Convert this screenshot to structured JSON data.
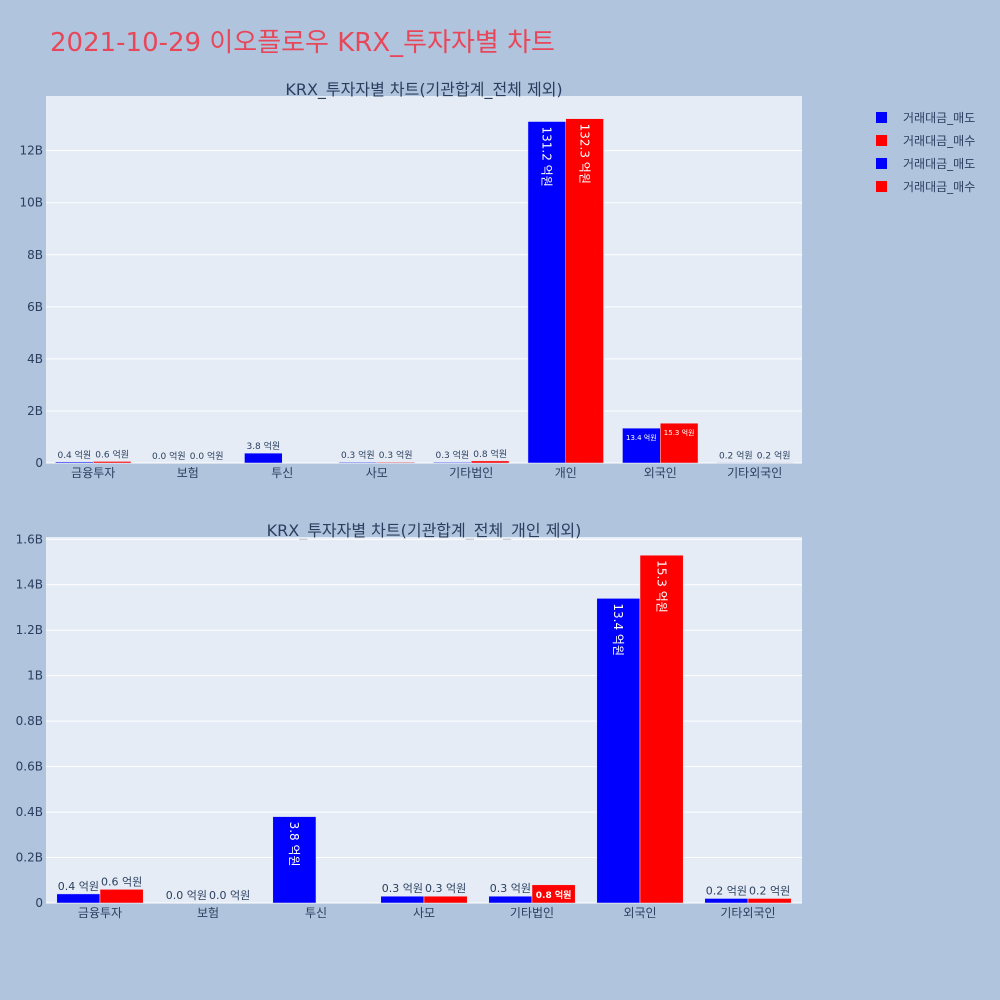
{
  "page_title": "2021-10-29 이오플로우 KRX_투자자별 차트",
  "colors": {
    "sell": "#0000ff",
    "buy": "#ff0000",
    "plot_bg": "#e5ecf6",
    "page_bg": "#b0c4de"
  },
  "legend": [
    {
      "label": "거래대금_매도",
      "color": "#0000ff"
    },
    {
      "label": "거래대금_매수",
      "color": "#ff0000"
    },
    {
      "label": "거래대금_매도",
      "color": "#0000ff"
    },
    {
      "label": "거래대금_매수",
      "color": "#ff0000"
    }
  ],
  "chart_data": [
    {
      "type": "bar",
      "title": "KRX_투자자별 차트(기관합계_전체 제외)",
      "categories": [
        "금융투자",
        "보험",
        "투신",
        "사모",
        "기타법인",
        "개인",
        "외국인",
        "기타외국인"
      ],
      "series": [
        {
          "name": "거래대금_매도",
          "values": [
            0.04,
            0.0,
            0.38,
            0.03,
            0.03,
            13.12,
            1.34,
            0.02
          ],
          "labels": [
            "0.4 억원",
            "0.0 억원",
            "3.8 억원",
            "0.3 억원",
            "0.3 억원",
            "131.2 억원",
            "13.4 억원",
            "0.2 억원"
          ]
        },
        {
          "name": "거래대금_매수",
          "values": [
            0.06,
            0.0,
            0.0,
            0.03,
            0.08,
            13.23,
            1.53,
            0.02
          ],
          "labels": [
            "0.6 억원",
            "0.0 억원",
            "",
            "0.3 억원",
            "0.8 억원",
            "132.3 억원",
            "15.3 억원",
            "0.2 억원"
          ]
        }
      ],
      "yticks": [
        0,
        2,
        4,
        6,
        8,
        10,
        12
      ],
      "ytick_labels": [
        "0",
        "2B",
        "4B",
        "6B",
        "8B",
        "10B",
        "12B"
      ],
      "ylim": [
        0,
        14.1
      ]
    },
    {
      "type": "bar",
      "title": "KRX_투자자별 차트(기관합계_전체_개인 제외)",
      "categories": [
        "금융투자",
        "보험",
        "투신",
        "사모",
        "기타법인",
        "외국인",
        "기타외국인"
      ],
      "series": [
        {
          "name": "거래대금_매도",
          "values": [
            0.04,
            0.0,
            0.38,
            0.03,
            0.03,
            1.34,
            0.02
          ],
          "labels": [
            "0.4 억원",
            "0.0 억원",
            "3.8 억원",
            "0.3 억원",
            "0.3 억원",
            "13.4 억원",
            "0.2 억원"
          ]
        },
        {
          "name": "거래대금_매수",
          "values": [
            0.06,
            0.0,
            0.0,
            0.03,
            0.08,
            1.53,
            0.02
          ],
          "labels": [
            "0.6 억원",
            "0.0 억원",
            "",
            "0.3 억원",
            "0.8 억원",
            "15.3 억원",
            "0.2 억원"
          ]
        }
      ],
      "yticks": [
        0,
        0.2,
        0.4,
        0.6,
        0.8,
        1.0,
        1.2,
        1.4,
        1.6
      ],
      "ytick_labels": [
        "0",
        "0.2B",
        "0.4B",
        "0.6B",
        "0.8B",
        "1B",
        "1.2B",
        "1.4B",
        "1.6B"
      ],
      "ylim": [
        0,
        1.61
      ]
    }
  ]
}
